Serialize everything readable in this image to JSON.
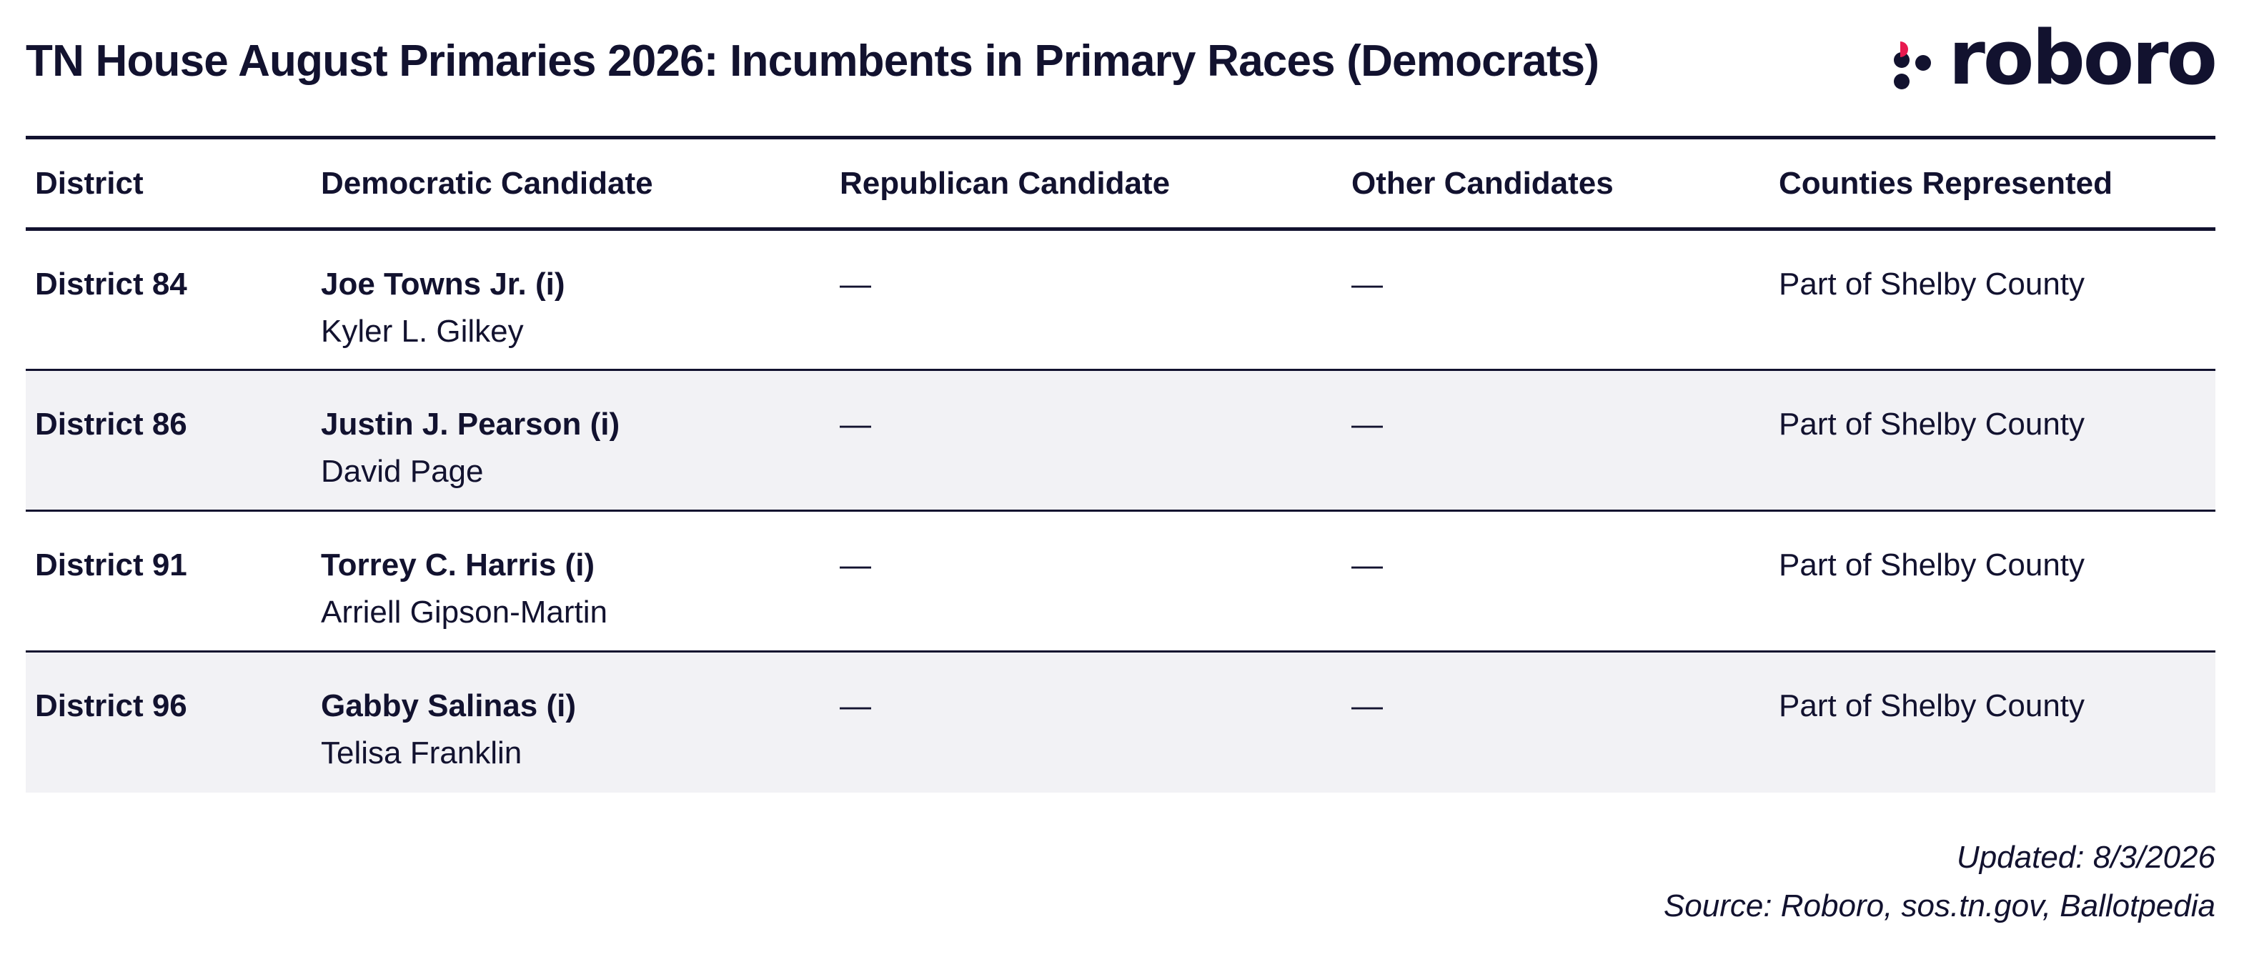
{
  "title": "TN House August Primaries 2026: Incumbents in Primary Races (Democrats)",
  "logo": {
    "text": "roboro",
    "icon": "roboro-dots-logo",
    "accent_color": "#e8194f",
    "brand_color": "#12122f"
  },
  "table": {
    "headers": [
      "District",
      "Democratic Candidate",
      "Republican Candidate",
      "Other Candidates",
      "Counties Represented"
    ],
    "rows": [
      {
        "district": "District 84",
        "dem_incumbent": "Joe Towns Jr. (i)",
        "dem_challenger": "Kyler L. Gilkey",
        "republican": "—",
        "other": "—",
        "counties": "Part of Shelby County"
      },
      {
        "district": "District 86",
        "dem_incumbent": "Justin J. Pearson (i)",
        "dem_challenger": "David Page",
        "republican": "—",
        "other": "—",
        "counties": "Part of Shelby County"
      },
      {
        "district": "District 91",
        "dem_incumbent": "Torrey C. Harris (i)",
        "dem_challenger": "Arriell Gipson-Martin",
        "republican": "—",
        "other": "—",
        "counties": "Part of Shelby County"
      },
      {
        "district": "District 96",
        "dem_incumbent": "Gabby Salinas (i)",
        "dem_challenger": "Telisa Franklin",
        "republican": "—",
        "other": "—",
        "counties": "Part of Shelby County"
      }
    ]
  },
  "footer": {
    "updated": "Updated: 8/3/2026",
    "source": "Source: Roboro, sos.tn.gov, Ballotpedia"
  },
  "colors": {
    "text": "#12122f",
    "row_alt_bg": "#f2f2f5",
    "rule": "#12122f"
  }
}
